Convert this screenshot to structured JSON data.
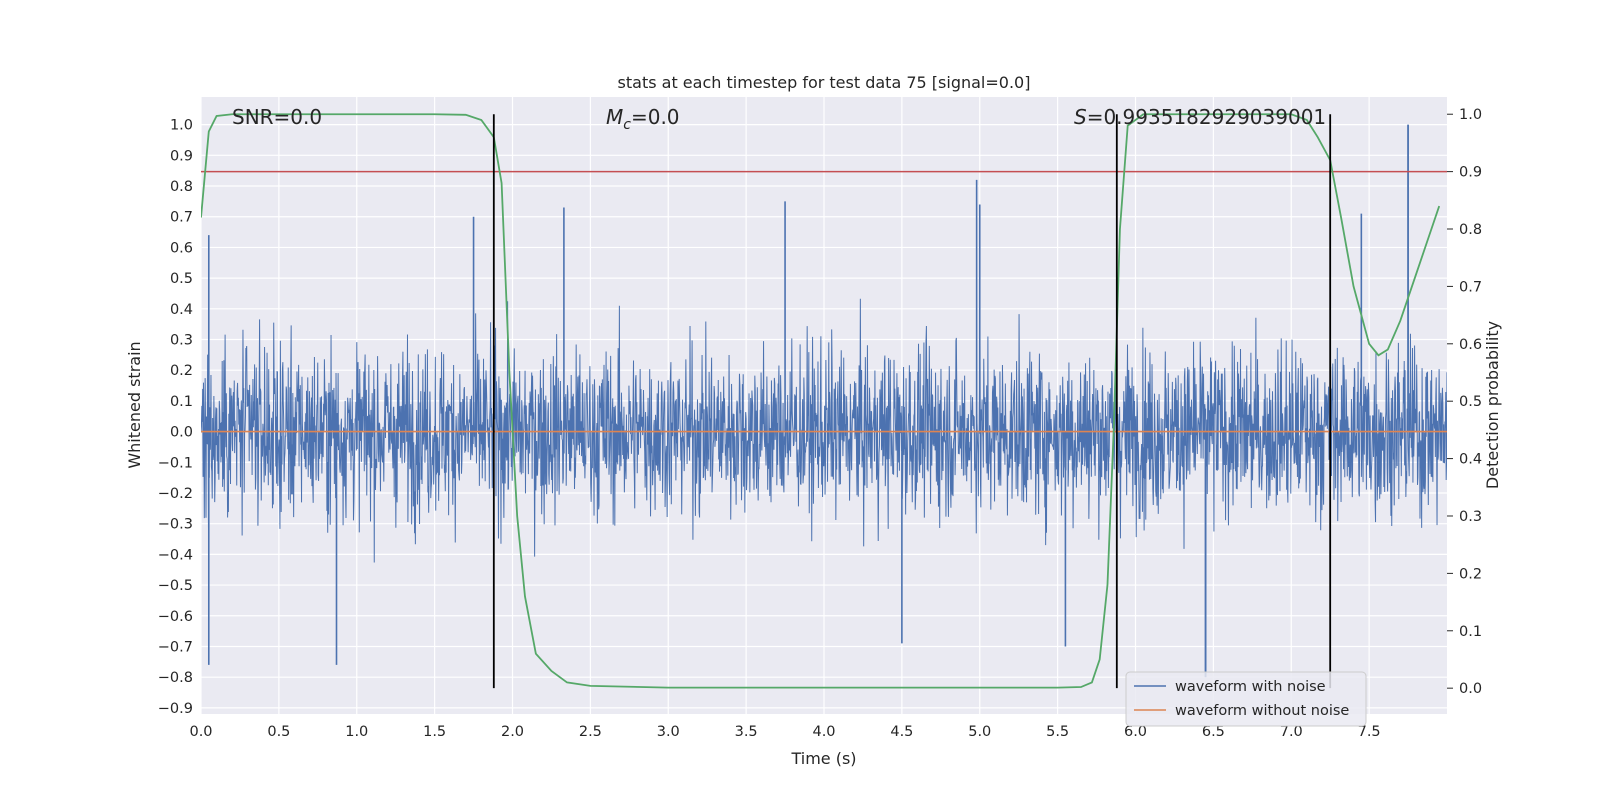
{
  "chart_data": {
    "type": "line",
    "title": "stats at each timestep for test data 75 [signal=0.0]",
    "xlabel": "Time (s)",
    "ylabel": "Whitened strain",
    "y2label": "Detection probability",
    "xlim": [
      0.0,
      8.0
    ],
    "ylim": [
      -0.92,
      1.09
    ],
    "y2lim": [
      -0.045,
      1.03
    ],
    "xticks": [
      "0.0",
      "0.5",
      "1.0",
      "1.5",
      "2.0",
      "2.5",
      "3.0",
      "3.5",
      "4.0",
      "4.5",
      "5.0",
      "5.5",
      "6.0",
      "6.5",
      "7.0",
      "7.5"
    ],
    "yticks": [
      "1.0",
      "0.9",
      "0.8",
      "0.7",
      "0.6",
      "0.5",
      "0.4",
      "0.3",
      "0.2",
      "0.1",
      "0.0",
      "−0.1",
      "−0.2",
      "−0.3",
      "−0.4",
      "−0.5",
      "−0.6",
      "−0.7",
      "−0.8",
      "−0.9"
    ],
    "y2ticks": [
      "1.0",
      "0.9",
      "0.8",
      "0.7",
      "0.6",
      "0.5",
      "0.4",
      "0.3",
      "0.2",
      "0.1",
      "0.0"
    ],
    "grid": true,
    "legend_position": "lower-right",
    "annotations": {
      "snr": "SNR=0.0",
      "mc_symbol": "M",
      "mc_sub": "c",
      "mc_value": "=0.0",
      "s_symbol": "S",
      "s_value": "=0.9935182929039001"
    },
    "threshold_probability": 0.9,
    "detection_boundaries_s": [
      1.88,
      5.88,
      7.25
    ],
    "series": [
      {
        "name": "waveform with noise",
        "color": "#4c72b0",
        "envelope": {
          "typical_amplitude": 0.35,
          "max_peak": 1.0,
          "max_peak_time": 7.75,
          "min_trough": -0.8,
          "min_trough_time": 6.45,
          "notable_peaks": [
            [
              0.05,
              0.64
            ],
            [
              4.98,
              0.82
            ],
            [
              5.0,
              0.74
            ],
            [
              2.33,
              0.73
            ],
            [
              7.45,
              0.71
            ],
            [
              1.75,
              0.7
            ],
            [
              3.75,
              0.75
            ],
            [
              0.87,
              -0.76
            ],
            [
              0.05,
              -0.76
            ],
            [
              6.45,
              -0.8
            ],
            [
              4.5,
              -0.69
            ],
            [
              5.55,
              -0.7
            ]
          ]
        }
      },
      {
        "name": "waveform without noise",
        "color": "#dd8452",
        "constant_value": 0.0
      },
      {
        "name": "detection probability",
        "color": "#55a868",
        "axis": "right",
        "x": [
          0.0,
          0.05,
          0.1,
          0.2,
          0.5,
          1.0,
          1.5,
          1.7,
          1.8,
          1.88,
          1.93,
          1.98,
          2.03,
          2.08,
          2.15,
          2.25,
          2.35,
          2.5,
          3.0,
          4.0,
          5.0,
          5.5,
          5.65,
          5.72,
          5.77,
          5.82,
          5.86,
          5.9,
          5.95,
          6.05,
          6.3,
          6.7,
          7.0,
          7.1,
          7.17,
          7.25,
          7.32,
          7.4,
          7.5,
          7.56,
          7.62,
          7.7,
          7.8,
          7.9,
          7.95
        ],
        "y": [
          0.82,
          0.97,
          0.997,
          1.0,
          1.0,
          1.0,
          1.0,
          0.999,
          0.99,
          0.96,
          0.88,
          0.55,
          0.3,
          0.16,
          0.06,
          0.03,
          0.01,
          0.004,
          0.001,
          0.001,
          0.001,
          0.001,
          0.002,
          0.01,
          0.05,
          0.18,
          0.45,
          0.8,
          0.98,
          1.0,
          1.0,
          1.0,
          1.0,
          0.99,
          0.96,
          0.92,
          0.82,
          0.7,
          0.6,
          0.58,
          0.59,
          0.64,
          0.72,
          0.8,
          0.84
        ]
      }
    ],
    "colors": {
      "plot_background": "#eaeaf2",
      "grid": "#ffffff",
      "threshold": "#c44e52",
      "boundary": "#000000"
    }
  }
}
